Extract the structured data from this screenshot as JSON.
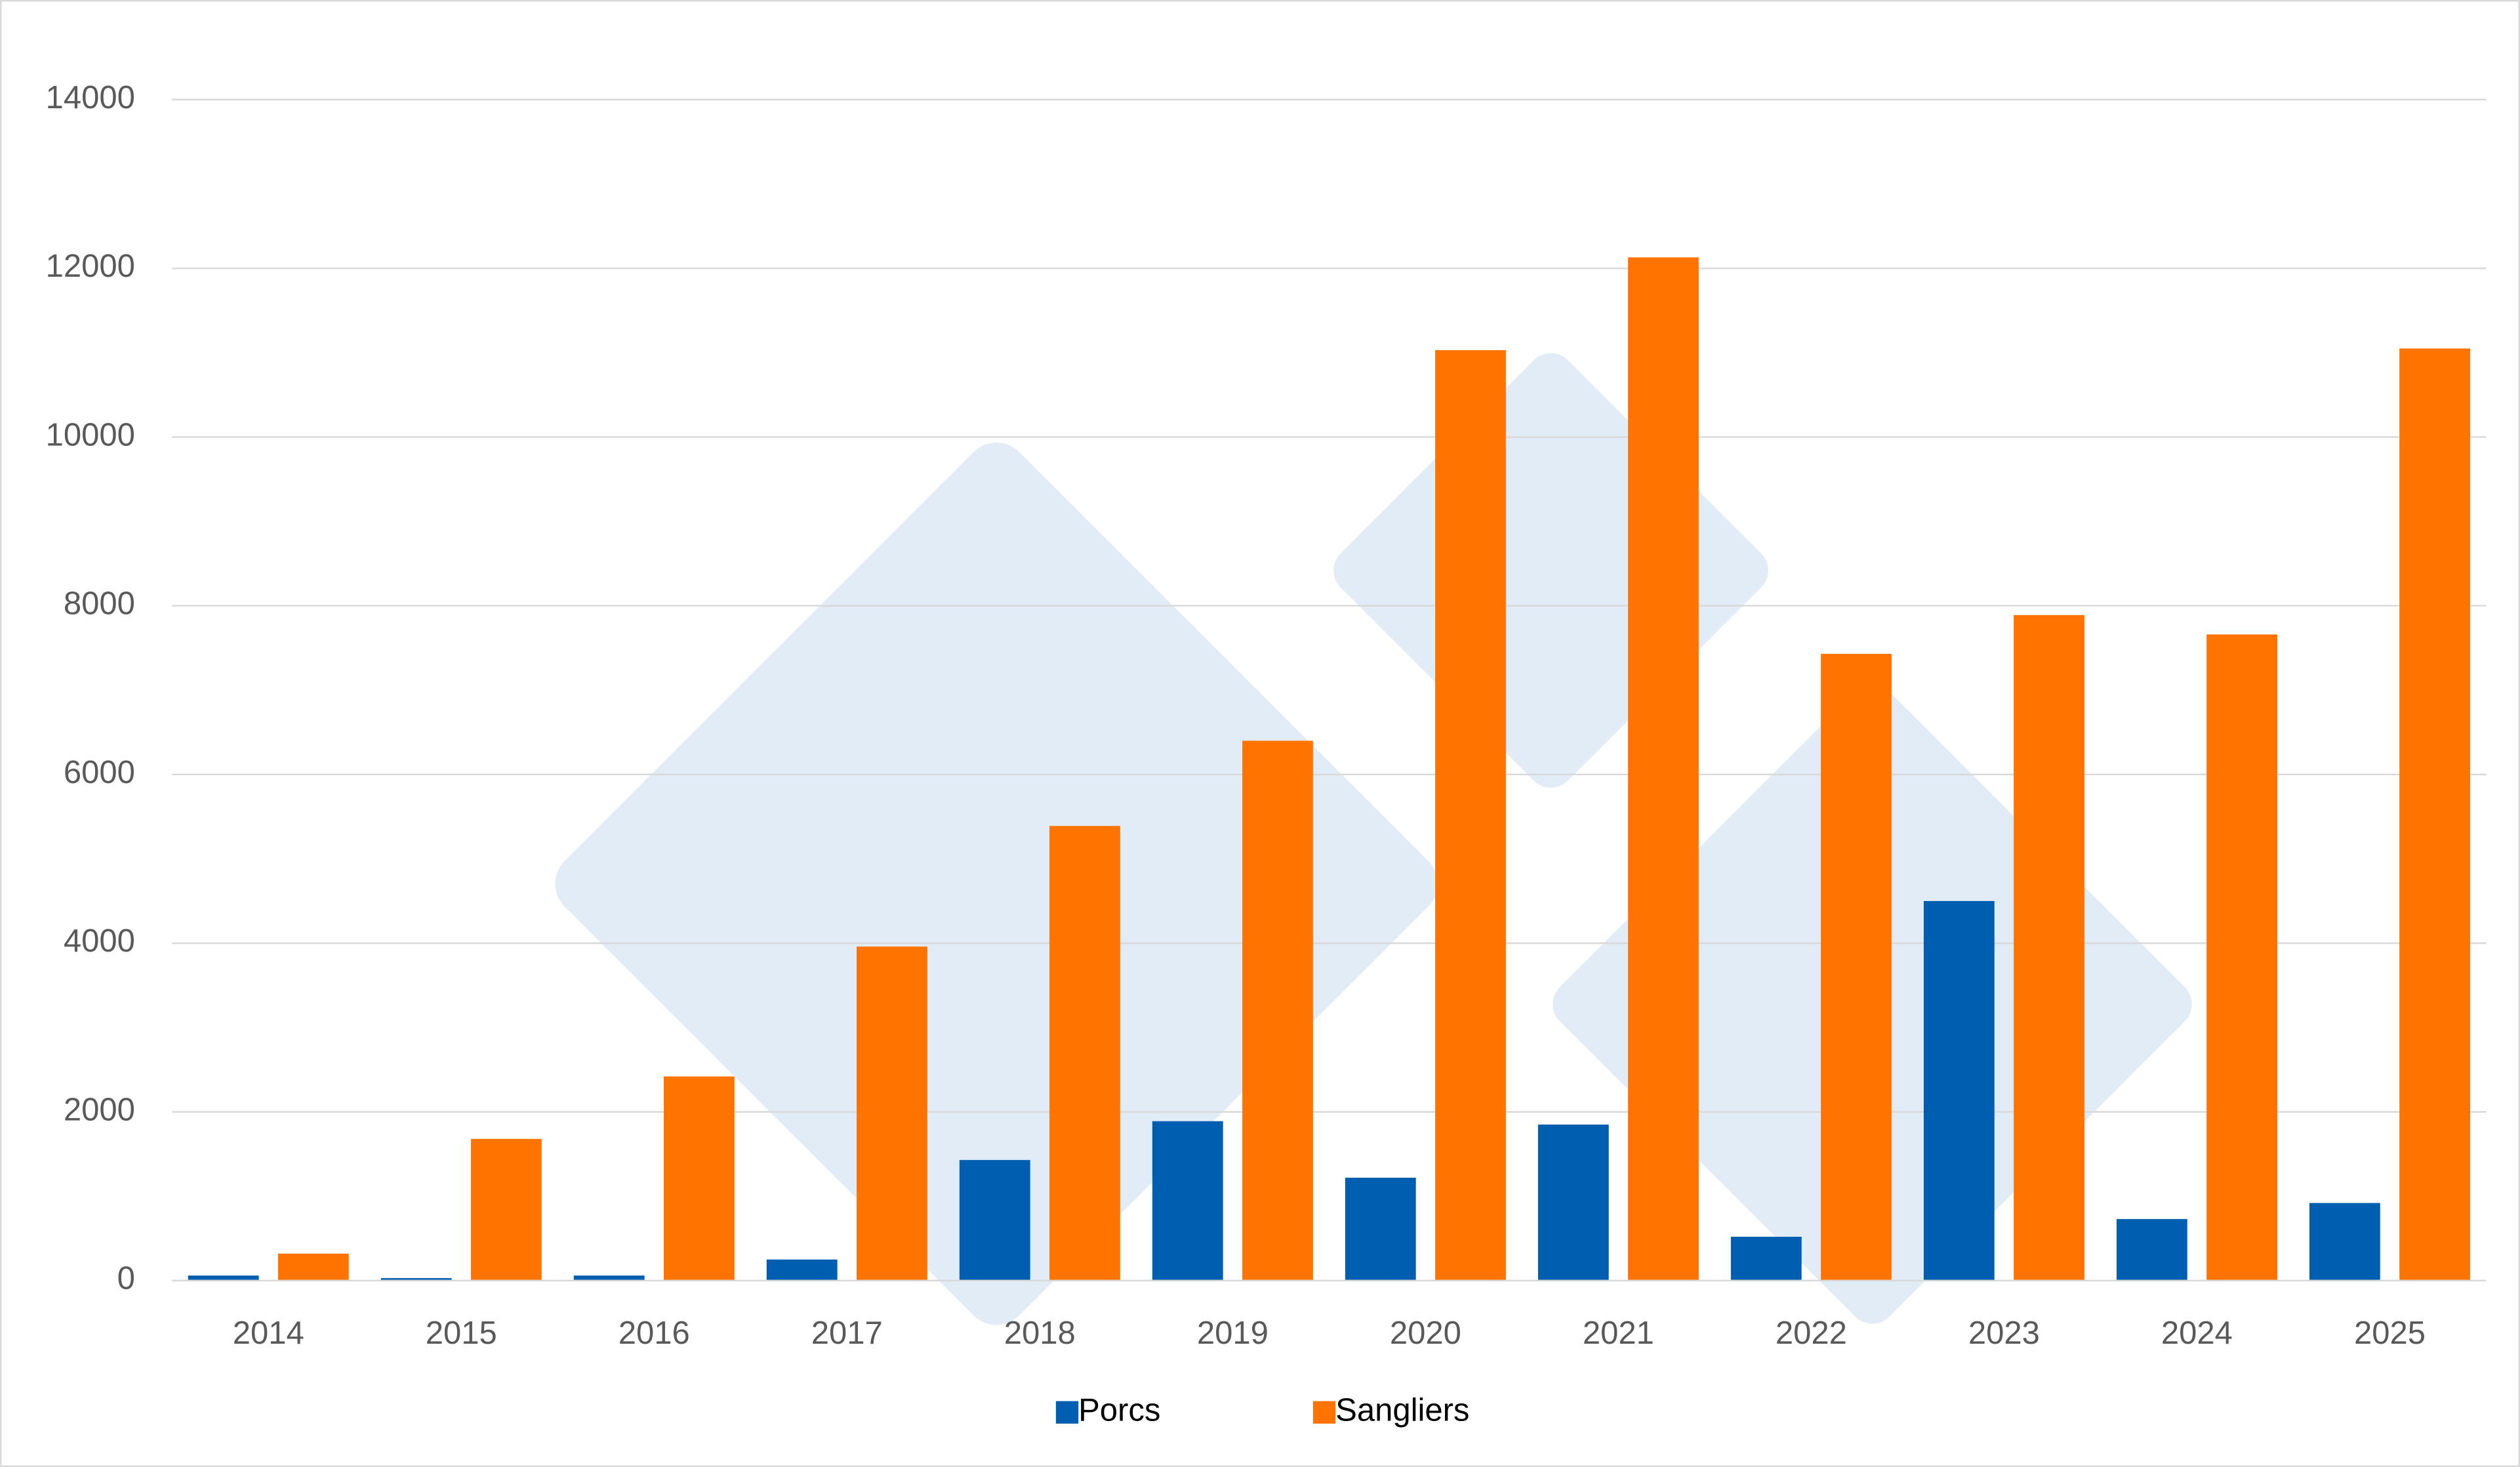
{
  "chart_data": {
    "type": "bar",
    "categories": [
      "2014",
      "2015",
      "2016",
      "2017",
      "2018",
      "2019",
      "2020",
      "2021",
      "2022",
      "2023",
      "2024",
      "2025"
    ],
    "series": [
      {
        "name": "Porcs",
        "color": "#005eb0",
        "values": [
          60,
          30,
          60,
          250,
          1430,
          1890,
          1220,
          1850,
          520,
          4500,
          730,
          920
        ]
      },
      {
        "name": "Sangliers",
        "color": "#ff7400",
        "values": [
          320,
          1680,
          2420,
          3960,
          5390,
          6400,
          11030,
          12130,
          7430,
          7890,
          7660,
          11050
        ]
      }
    ],
    "ylim": [
      0,
      14000
    ],
    "yticks": [
      0,
      2000,
      4000,
      6000,
      8000,
      10000,
      12000,
      14000
    ],
    "grid": true,
    "legend": "bottom"
  }
}
